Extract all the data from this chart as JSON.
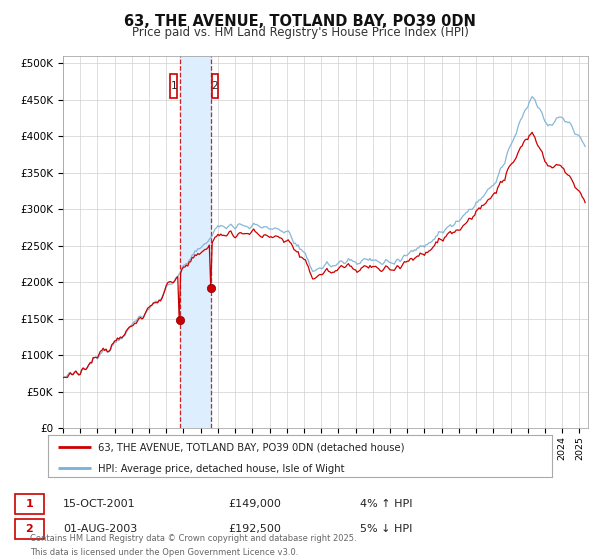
{
  "title": "63, THE AVENUE, TOTLAND BAY, PO39 0DN",
  "subtitle": "Price paid vs. HM Land Registry's House Price Index (HPI)",
  "legend_line1": "63, THE AVENUE, TOTLAND BAY, PO39 0DN (detached house)",
  "legend_line2": "HPI: Average price, detached house, Isle of Wight",
  "sale1_date": "15-OCT-2001",
  "sale1_price": "£149,000",
  "sale1_hpi": "4% ↑ HPI",
  "sale1_x": 2001.79,
  "sale1_y": 149000,
  "sale2_date": "01-AUG-2003",
  "sale2_price": "£192,500",
  "sale2_hpi": "5% ↓ HPI",
  "sale2_x": 2003.58,
  "sale2_y": 192500,
  "highlight_x1": 2001.79,
  "highlight_x2": 2003.58,
  "xmin": 1995,
  "xmax": 2025.5,
  "ymin": 0,
  "ymax": 510000,
  "yticks": [
    0,
    50000,
    100000,
    150000,
    200000,
    250000,
    300000,
    350000,
    400000,
    450000,
    500000
  ],
  "ytick_labels": [
    "£0",
    "£50K",
    "£100K",
    "£150K",
    "£200K",
    "£250K",
    "£300K",
    "£350K",
    "£400K",
    "£450K",
    "£500K"
  ],
  "red_color": "#cc0000",
  "blue_color": "#7ab0d4",
  "highlight_color": "#ddeeff",
  "background_color": "#ffffff",
  "footer": "Contains HM Land Registry data © Crown copyright and database right 2025.\nThis data is licensed under the Open Government Licence v3.0."
}
